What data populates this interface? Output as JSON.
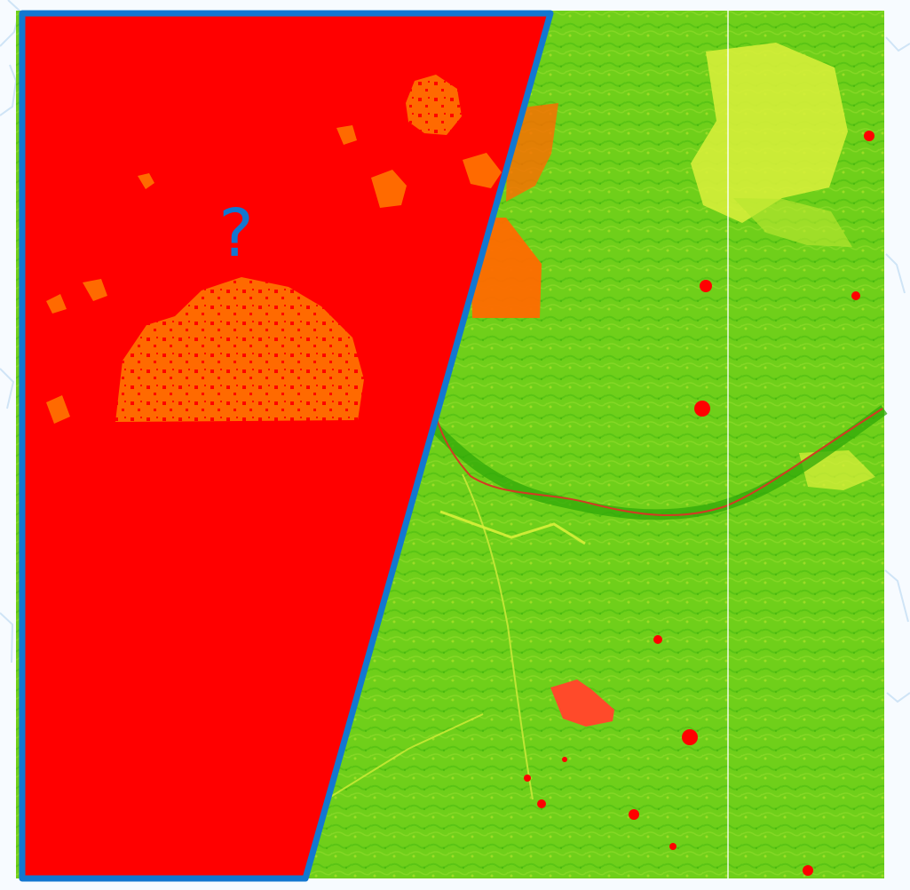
{
  "annotation": {
    "symbol": "?"
  },
  "colors": {
    "background": "#f7fbff",
    "basemap_lines": "#cfe4f6",
    "missing_data_fill": "#ff0000",
    "highlight_fill": "#ff6a00",
    "vegetation_base": "#6fcf1a",
    "vegetation_dark": "#3fb30b",
    "vegetation_yellow": "#d8ef3a",
    "river": "#d23b23",
    "outline": "#1277d1",
    "grid_line": "#ffffff"
  }
}
